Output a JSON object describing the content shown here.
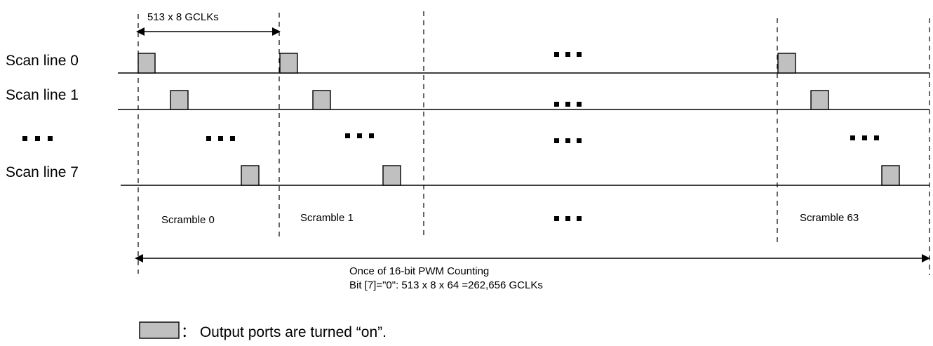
{
  "rows": [
    {
      "label": "Scan line 0"
    },
    {
      "label": "Scan line 1"
    },
    {
      "label": "▪ ▪ ▪"
    },
    {
      "label": "Scan line 7"
    }
  ],
  "top_dimension": "513 x 8 GCLKs",
  "scrambles": [
    "Scramble 0",
    "Scramble 1",
    "Scramble 63"
  ],
  "total_line1": "Once of 16-bit PWM Counting",
  "total_line2": "Bit [7]=\"0\": 513 x 8 x 64 =262,656 GCLKs",
  "legend_text": "： Output ports are turned “on”.",
  "colors": {
    "pulse_fill": "#c0c0c0",
    "stroke": "#000000"
  }
}
